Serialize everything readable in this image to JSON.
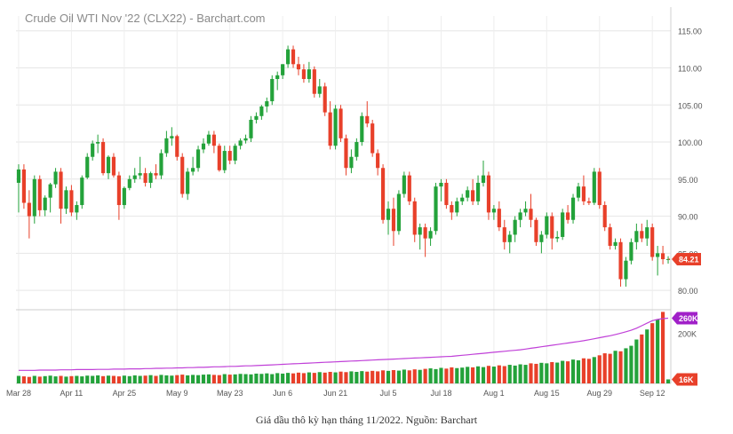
{
  "caption": "Giá dầu thô kỳ hạn tháng 11/2022. Nguồn: Barchart",
  "chart_data": {
    "type": "candlestick",
    "title": "Crude Oil WTI Nov '22 (CLX22) - Barchart.com",
    "price_axis": {
      "ylim": [
        77.5,
        117
      ],
      "ticks": [
        80,
        85,
        90,
        95,
        100,
        105,
        110,
        115
      ],
      "tick_labels": [
        "80.00",
        "85.00",
        "90.00",
        "95.00",
        "100.00",
        "105.00",
        "110.00",
        "115.00"
      ]
    },
    "volume_axis": {
      "ylim": [
        0,
        290
      ],
      "ticks": [
        200
      ],
      "tick_labels": [
        "200K"
      ]
    },
    "last_price": {
      "value": 84.21,
      "label": "84.21"
    },
    "volume_badges": [
      {
        "value": 260,
        "label": "260K",
        "color": "#a020c8"
      },
      {
        "value": 16,
        "label": "16K",
        "color": "#e8402a"
      }
    ],
    "x_tick_labels": [
      "Mar 28",
      "Apr 11",
      "Apr 25",
      "May 9",
      "May 23",
      "Jun 6",
      "Jun 21",
      "Jul 5",
      "Jul 18",
      "Aug 1",
      "Aug 15",
      "Aug 29",
      "Sep 12"
    ],
    "x_tick_index": [
      0,
      10,
      20,
      30,
      40,
      50,
      60,
      70,
      80,
      90,
      100,
      110,
      120
    ],
    "ohlc": [
      [
        94.5,
        97.0,
        90.5,
        96.3
      ],
      [
        96.3,
        97.0,
        91.0,
        91.8
      ],
      [
        91.8,
        93.5,
        87.0,
        90.0
      ],
      [
        90.0,
        95.5,
        89.0,
        95.0
      ],
      [
        95.0,
        95.5,
        90.0,
        90.8
      ],
      [
        90.8,
        92.8,
        90.0,
        92.5
      ],
      [
        92.5,
        94.5,
        90.5,
        94.3
      ],
      [
        94.3,
        96.5,
        93.8,
        96.0
      ],
      [
        96.0,
        96.5,
        89.0,
        91.0
      ],
      [
        91.0,
        94.0,
        90.3,
        93.5
      ],
      [
        93.5,
        94.2,
        90.0,
        90.5
      ],
      [
        90.5,
        92.0,
        89.5,
        91.5
      ],
      [
        91.5,
        95.5,
        91.0,
        95.2
      ],
      [
        95.2,
        98.5,
        95.0,
        98.0
      ],
      [
        98.0,
        100.2,
        97.5,
        99.8
      ],
      [
        99.8,
        101.0,
        98.5,
        100.0
      ],
      [
        100.0,
        100.5,
        95.5,
        95.8
      ],
      [
        95.8,
        98.2,
        95.0,
        98.0
      ],
      [
        98.0,
        98.5,
        95.2,
        95.5
      ],
      [
        95.5,
        96.0,
        89.5,
        91.5
      ],
      [
        91.5,
        94.0,
        91.0,
        93.8
      ],
      [
        93.8,
        95.5,
        93.5,
        95.0
      ],
      [
        95.0,
        96.5,
        94.5,
        95.5
      ],
      [
        95.5,
        98.0,
        95.0,
        95.8
      ],
      [
        95.8,
        96.5,
        94.0,
        94.5
      ],
      [
        94.5,
        96.0,
        93.8,
        95.8
      ],
      [
        95.8,
        97.0,
        95.0,
        95.5
      ],
      [
        95.5,
        99.0,
        95.0,
        98.5
      ],
      [
        98.5,
        101.5,
        98.0,
        100.5
      ],
      [
        100.5,
        102.0,
        99.5,
        100.8
      ],
      [
        100.8,
        101.0,
        97.5,
        98.0
      ],
      [
        98.0,
        98.5,
        92.5,
        93.0
      ],
      [
        93.0,
        96.5,
        92.2,
        96.0
      ],
      [
        96.0,
        98.0,
        95.5,
        96.5
      ],
      [
        96.5,
        99.5,
        96.0,
        99.0
      ],
      [
        99.0,
        100.5,
        98.5,
        99.8
      ],
      [
        99.8,
        101.5,
        99.5,
        101.0
      ],
      [
        101.0,
        101.5,
        98.5,
        99.5
      ],
      [
        99.5,
        99.8,
        96.0,
        96.2
      ],
      [
        96.2,
        99.5,
        95.8,
        98.8
      ],
      [
        98.8,
        99.5,
        97.0,
        97.5
      ],
      [
        97.5,
        99.8,
        97.0,
        99.5
      ],
      [
        99.5,
        100.5,
        99.0,
        100.2
      ],
      [
        100.2,
        101.0,
        99.8,
        100.5
      ],
      [
        100.5,
        103.5,
        100.0,
        103.0
      ],
      [
        103.0,
        104.0,
        102.5,
        103.5
      ],
      [
        103.5,
        105.0,
        103.0,
        104.8
      ],
      [
        104.8,
        106.0,
        104.0,
        105.5
      ],
      [
        105.5,
        109.0,
        105.0,
        108.5
      ],
      [
        108.5,
        109.5,
        107.0,
        109.0
      ],
      [
        109.0,
        110.5,
        108.5,
        110.5
      ],
      [
        110.5,
        113.0,
        110.0,
        112.5
      ],
      [
        112.5,
        113.0,
        110.0,
        110.5
      ],
      [
        110.5,
        111.5,
        109.0,
        109.8
      ],
      [
        109.8,
        110.5,
        108.0,
        108.5
      ],
      [
        108.5,
        110.8,
        108.0,
        109.8
      ],
      [
        109.8,
        110.2,
        106.0,
        106.5
      ],
      [
        106.5,
        108.5,
        106.0,
        107.5
      ],
      [
        107.5,
        108.0,
        103.5,
        104.0
      ],
      [
        104.0,
        105.5,
        99.0,
        99.5
      ],
      [
        99.5,
        105.0,
        99.0,
        104.5
      ],
      [
        104.5,
        105.0,
        100.0,
        100.5
      ],
      [
        100.5,
        101.0,
        95.5,
        96.5
      ],
      [
        96.5,
        99.0,
        95.8,
        98.0
      ],
      [
        98.0,
        100.5,
        97.5,
        100.0
      ],
      [
        100.0,
        104.0,
        99.5,
        103.5
      ],
      [
        103.5,
        105.5,
        102.0,
        102.5
      ],
      [
        102.5,
        103.0,
        98.0,
        98.5
      ],
      [
        98.5,
        99.0,
        95.5,
        96.5
      ],
      [
        96.5,
        97.0,
        89.0,
        89.5
      ],
      [
        89.5,
        92.0,
        87.5,
        91.0
      ],
      [
        91.0,
        92.5,
        86.0,
        88.0
      ],
      [
        88.0,
        93.5,
        87.5,
        93.0
      ],
      [
        93.0,
        96.0,
        92.5,
        95.5
      ],
      [
        95.5,
        96.0,
        91.5,
        92.0
      ],
      [
        92.0,
        92.5,
        86.5,
        87.5
      ],
      [
        87.5,
        89.0,
        85.5,
        88.5
      ],
      [
        88.5,
        89.0,
        84.5,
        87.0
      ],
      [
        87.0,
        88.5,
        86.0,
        88.0
      ],
      [
        88.0,
        94.5,
        87.5,
        94.0
      ],
      [
        94.0,
        95.0,
        92.0,
        94.5
      ],
      [
        94.5,
        95.0,
        91.0,
        91.5
      ],
      [
        91.5,
        92.0,
        89.5,
        90.5
      ],
      [
        90.5,
        92.5,
        90.0,
        92.0
      ],
      [
        92.0,
        93.0,
        91.5,
        92.5
      ],
      [
        92.5,
        94.0,
        92.0,
        93.5
      ],
      [
        93.5,
        95.0,
        91.5,
        92.0
      ],
      [
        92.0,
        95.5,
        91.5,
        94.5
      ],
      [
        94.5,
        97.5,
        94.0,
        95.5
      ],
      [
        95.5,
        96.0,
        89.5,
        90.5
      ],
      [
        90.5,
        91.5,
        89.5,
        91.0
      ],
      [
        91.0,
        92.0,
        88.0,
        88.5
      ],
      [
        88.5,
        89.5,
        85.5,
        86.5
      ],
      [
        86.5,
        88.0,
        85.0,
        87.5
      ],
      [
        87.5,
        90.0,
        86.5,
        89.5
      ],
      [
        89.5,
        91.0,
        88.5,
        90.5
      ],
      [
        90.5,
        92.0,
        90.0,
        91.0
      ],
      [
        91.0,
        93.0,
        88.5,
        89.5
      ],
      [
        89.5,
        89.8,
        86.0,
        86.5
      ],
      [
        86.5,
        88.0,
        85.0,
        87.5
      ],
      [
        87.5,
        90.5,
        87.0,
        90.0
      ],
      [
        90.0,
        90.5,
        85.5,
        87.0
      ],
      [
        87.0,
        88.0,
        86.5,
        87.2
      ],
      [
        87.2,
        91.0,
        86.8,
        90.5
      ],
      [
        90.5,
        91.5,
        89.0,
        89.5
      ],
      [
        89.5,
        93.0,
        89.0,
        92.5
      ],
      [
        92.5,
        94.5,
        92.0,
        94.0
      ],
      [
        94.0,
        95.5,
        91.5,
        92.0
      ],
      [
        92.0,
        92.5,
        91.5,
        91.8
      ],
      [
        91.8,
        96.5,
        91.5,
        96.0
      ],
      [
        96.0,
        96.5,
        91.0,
        91.5
      ],
      [
        91.5,
        92.0,
        88.0,
        88.5
      ],
      [
        88.5,
        89.0,
        85.5,
        86.0
      ],
      [
        86.0,
        87.0,
        85.5,
        86.5
      ],
      [
        86.5,
        87.0,
        80.5,
        81.5
      ],
      [
        81.5,
        84.5,
        80.5,
        84.0
      ],
      [
        84.0,
        87.0,
        83.5,
        86.5
      ],
      [
        86.5,
        89.0,
        85.5,
        88.0
      ],
      [
        88.0,
        89.0,
        86.5,
        87.0
      ],
      [
        87.0,
        89.5,
        86.0,
        88.5
      ],
      [
        88.5,
        89.0,
        84.0,
        84.5
      ],
      [
        84.5,
        86.0,
        82.0,
        85.0
      ],
      [
        85.0,
        86.0,
        83.5,
        84.2
      ],
      [
        84.2,
        84.6,
        83.6,
        84.21
      ]
    ],
    "volume": [
      30,
      28,
      26,
      30,
      27,
      29,
      31,
      28,
      30,
      27,
      29,
      30,
      28,
      31,
      30,
      32,
      29,
      31,
      30,
      28,
      31,
      29,
      32,
      30,
      31,
      33,
      30,
      34,
      32,
      31,
      33,
      35,
      32,
      34,
      33,
      35,
      36,
      34,
      33,
      37,
      35,
      36,
      38,
      37,
      36,
      39,
      38,
      40,
      37,
      41,
      39,
      42,
      40,
      43,
      41,
      44,
      42,
      45,
      43,
      46,
      44,
      47,
      45,
      48,
      46,
      49,
      47,
      50,
      48,
      52,
      50,
      53,
      51,
      55,
      52,
      56,
      54,
      58,
      60,
      57,
      62,
      59,
      64,
      61,
      63,
      66,
      64,
      68,
      65,
      70,
      67,
      72,
      69,
      74,
      71,
      76,
      74,
      80,
      78,
      82,
      80,
      85,
      83,
      90,
      88,
      95,
      92,
      100,
      98,
      105,
      112,
      120,
      118,
      130,
      128,
      140,
      150,
      175,
      195,
      215,
      240,
      255,
      285,
      16
    ],
    "open_interest": [
      52,
      52,
      52,
      52,
      53,
      53,
      53,
      53,
      54,
      54,
      54,
      55,
      55,
      55,
      55,
      56,
      56,
      56,
      57,
      57,
      57,
      58,
      58,
      58,
      59,
      59,
      60,
      60,
      61,
      61,
      62,
      62,
      63,
      63,
      64,
      64,
      65,
      66,
      66,
      67,
      68,
      68,
      69,
      70,
      70,
      71,
      72,
      73,
      74,
      75,
      76,
      77,
      78,
      79,
      80,
      81,
      82,
      83,
      84,
      85,
      86,
      87,
      88,
      89,
      90,
      91,
      92,
      93,
      94,
      95,
      96,
      97,
      98,
      99,
      100,
      101,
      102,
      103,
      104,
      105,
      106,
      107,
      108,
      110,
      112,
      114,
      116,
      118,
      120,
      122,
      124,
      126,
      128,
      130,
      132,
      134,
      137,
      140,
      143,
      146,
      149,
      152,
      155,
      158,
      161,
      164,
      167,
      170,
      174,
      178,
      182,
      186,
      190,
      195,
      200,
      206,
      212,
      220,
      230,
      240,
      250,
      255,
      258,
      260
    ]
  }
}
